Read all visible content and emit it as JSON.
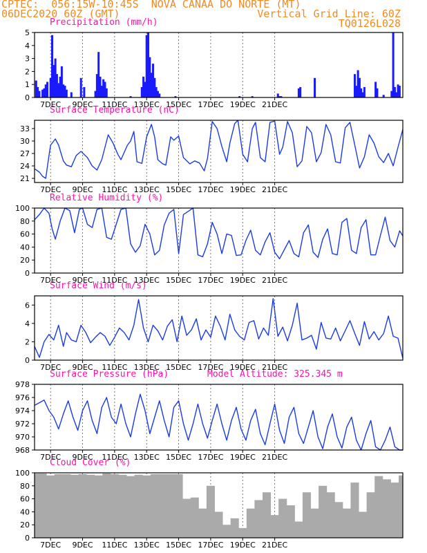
{
  "header": {
    "line1": "CPTEC:  056:15W-10:45S  NOVA CANAA DO NORTE (MT)",
    "line2_left": "06DEC2020 60Z (GMT)",
    "line2_right": "Vertical Grid Line: 60Z",
    "line3_right": "TQ0126L028"
  },
  "x_ticks": [
    "7DEC",
    "9DEC",
    "11DEC",
    "13DEC",
    "15DEC",
    "17DEC",
    "19DEC",
    "21DEC"
  ],
  "chart_data": [
    {
      "type": "bar",
      "title": "Precipitation (mm/h)",
      "ylim": [
        0,
        5
      ],
      "yticks": [
        0,
        1,
        2,
        3,
        4,
        5
      ],
      "color": "#1a1aff",
      "x_unit": "days since 06DEC2020 00Z",
      "x": [
        0.1,
        0.2,
        0.3,
        0.5,
        0.6,
        0.7,
        0.8,
        1.0,
        1.1,
        1.2,
        1.3,
        1.4,
        1.5,
        1.6,
        1.7,
        1.8,
        1.9,
        2.0,
        2.3,
        2.9,
        3.1,
        3.8,
        3.9,
        4.0,
        4.1,
        4.2,
        4.3,
        4.4,
        4.5,
        6.0,
        6.7,
        6.8,
        6.9,
        7.0,
        7.1,
        7.2,
        7.3,
        7.4,
        7.5,
        7.6,
        7.7,
        7.8,
        8.8,
        12.8,
        13.6,
        15.2,
        15.3,
        15.4,
        16.5,
        16.6,
        17.5,
        20.0,
        20.1,
        20.2,
        20.3,
        20.4,
        20.5,
        20.6,
        21.3,
        21.4,
        21.8,
        22.3,
        22.4,
        22.5,
        22.6,
        22.7,
        22.8
      ],
      "values": [
        1.3,
        0.8,
        0.5,
        0.6,
        0.7,
        1.0,
        1.2,
        1.5,
        4.8,
        2.5,
        3.0,
        1.8,
        1.1,
        1.6,
        2.4,
        1.0,
        0.9,
        0.6,
        0.4,
        1.5,
        0.8,
        0.5,
        1.8,
        3.5,
        1.6,
        0.9,
        1.4,
        1.2,
        0.7,
        0.1,
        0.8,
        1.6,
        1.2,
        4.8,
        5.0,
        3.1,
        1.9,
        2.6,
        1.5,
        0.8,
        0.5,
        0.3,
        0.1,
        0.1,
        0.1,
        0.3,
        0.1,
        0.1,
        0.7,
        0.8,
        1.5,
        1.8,
        0.9,
        2.1,
        1.5,
        0.7,
        0.4,
        0.8,
        1.2,
        0.7,
        0.2,
        0.5,
        5.0,
        0.8,
        0.4,
        1.0,
        0.9
      ]
    },
    {
      "type": "line",
      "title": "Surface Temperature (nC)",
      "ylim": [
        20,
        35
      ],
      "yticks": [
        21,
        24,
        27,
        30,
        33
      ],
      "color": "#1a3ae6",
      "x": [
        0,
        0.3,
        0.5,
        0.7,
        0.9,
        1.0,
        1.3,
        1.5,
        1.8,
        2.0,
        2.3,
        2.6,
        2.9,
        3.3,
        3.6,
        3.9,
        4.2,
        4.6,
        4.9,
        5.2,
        5.4,
        5.8,
        6.0,
        6.2,
        6.4,
        6.7,
        7.0,
        7.3,
        7.5,
        7.7,
        8.0,
        8.2,
        8.5,
        8.7,
        9.0,
        9.3,
        9.7,
        10.0,
        10.3,
        10.6,
        10.8,
        11.1,
        11.4,
        11.7,
        12.0,
        12.2,
        12.5,
        12.7,
        13.0,
        13.3,
        13.6,
        13.8,
        14.1,
        14.4,
        14.7,
        15.0,
        15.3,
        15.5,
        15.8,
        16.1,
        16.4,
        16.7,
        17.0,
        17.3,
        17.6,
        17.9,
        18.2,
        18.5,
        18.8,
        19.1,
        19.4,
        19.7,
        20.0,
        20.3,
        20.6,
        20.9,
        21.2,
        21.5,
        21.8,
        22.1,
        22.4,
        22.7,
        23.0
      ],
      "values": [
        23.3,
        22.5,
        21.5,
        21.0,
        26.5,
        29.0,
        30.5,
        29.0,
        25.2,
        24.2,
        23.8,
        26.5,
        27.5,
        26.0,
        24.0,
        23.0,
        25.5,
        31.5,
        29.5,
        26.8,
        25.5,
        29.0,
        30.0,
        32.3,
        25.0,
        24.6,
        31.0,
        34.0,
        31.0,
        25.5,
        24.5,
        24.2,
        31.0,
        30.2,
        31.2,
        26.0,
        24.5,
        25.2,
        24.7,
        22.8,
        25.8,
        34.7,
        33.0,
        28.7,
        25.0,
        29.5,
        34.2,
        35.0,
        26.8,
        25.0,
        33.0,
        34.5,
        26.0,
        25.0,
        34.5,
        34.8,
        26.8,
        28.5,
        34.7,
        32.0,
        23.8,
        25.2,
        33.5,
        32.0,
        25.0,
        27.2,
        34.0,
        31.5,
        25.0,
        24.7,
        33.2,
        34.5,
        29.0,
        23.5,
        26.2,
        31.5,
        29.5,
        26.2,
        24.8,
        27.0,
        24.0,
        28.5,
        32.8
      ]
    },
    {
      "type": "line",
      "title": "Relative Humidity (%)",
      "ylim": [
        0,
        100
      ],
      "yticks": [
        0,
        20,
        40,
        60,
        80,
        100
      ],
      "color": "#1a3ae6",
      "x": [
        0,
        0.3,
        0.6,
        0.9,
        1.1,
        1.3,
        1.6,
        1.9,
        2.2,
        2.5,
        2.8,
        3.0,
        3.3,
        3.6,
        3.9,
        4.2,
        4.5,
        4.8,
        5.1,
        5.4,
        5.7,
        6.0,
        6.3,
        6.6,
        6.9,
        7.2,
        7.5,
        7.8,
        8.1,
        8.4,
        8.7,
        9.0,
        9.3,
        9.6,
        9.9,
        10.2,
        10.5,
        10.8,
        11.1,
        11.4,
        11.7,
        12.0,
        12.3,
        12.6,
        12.9,
        13.2,
        13.5,
        13.8,
        14.1,
        14.4,
        14.7,
        15.0,
        15.3,
        15.6,
        15.9,
        16.2,
        16.5,
        16.8,
        17.1,
        17.4,
        17.7,
        18.0,
        18.3,
        18.6,
        18.9,
        19.2,
        19.5,
        19.8,
        20.1,
        20.4,
        20.7,
        21.0,
        21.3,
        21.6,
        21.9,
        22.2,
        22.5,
        22.8,
        23.0
      ],
      "values": [
        82,
        90,
        100,
        92,
        68,
        52,
        80,
        100,
        96,
        62,
        98,
        100,
        75,
        70,
        98,
        100,
        55,
        52,
        75,
        98,
        100,
        45,
        32,
        42,
        75,
        60,
        28,
        35,
        74,
        92,
        98,
        30,
        90,
        95,
        100,
        28,
        25,
        45,
        78,
        60,
        30,
        60,
        58,
        27,
        28,
        50,
        66,
        35,
        28,
        48,
        62,
        32,
        22,
        36,
        50,
        30,
        25,
        62,
        74,
        32,
        24,
        52,
        68,
        30,
        28,
        78,
        84,
        35,
        30,
        70,
        82,
        28,
        28,
        58,
        86,
        50,
        40,
        65,
        57
      ]
    },
    {
      "type": "line",
      "title": "Surface Wind (m/s)",
      "ylim": [
        0,
        7
      ],
      "yticks": [
        0,
        2,
        4,
        6
      ],
      "color": "#1a3ae6",
      "x": [
        0,
        0.3,
        0.6,
        0.9,
        1.2,
        1.5,
        1.8,
        2.0,
        2.3,
        2.6,
        2.9,
        3.2,
        3.5,
        3.8,
        4.1,
        4.4,
        4.7,
        5.0,
        5.3,
        5.6,
        5.9,
        6.2,
        6.5,
        6.8,
        7.1,
        7.4,
        7.7,
        8.0,
        8.3,
        8.6,
        8.9,
        9.2,
        9.5,
        9.8,
        10.1,
        10.4,
        10.7,
        11.0,
        11.3,
        11.6,
        11.9,
        12.2,
        12.5,
        12.8,
        13.1,
        13.4,
        13.7,
        14.0,
        14.3,
        14.6,
        14.9,
        15.2,
        15.5,
        15.8,
        16.1,
        16.4,
        16.7,
        17.0,
        17.3,
        17.6,
        17.9,
        18.2,
        18.5,
        18.8,
        19.1,
        19.4,
        19.7,
        20.0,
        20.3,
        20.6,
        20.9,
        21.2,
        21.5,
        21.8,
        22.1,
        22.4,
        22.7,
        23.0
      ],
      "values": [
        1.5,
        0.3,
        2.0,
        2.8,
        2.2,
        3.8,
        1.5,
        3.0,
        2.2,
        2.0,
        3.8,
        3.0,
        1.9,
        2.5,
        3.0,
        2.6,
        1.6,
        2.5,
        3.5,
        3.0,
        2.2,
        3.8,
        6.6,
        3.5,
        2.0,
        3.8,
        3.2,
        2.2,
        3.7,
        4.4,
        2.0,
        4.8,
        2.7,
        3.3,
        4.5,
        2.2,
        3.3,
        2.5,
        4.8,
        3.7,
        2.2,
        5.0,
        3.3,
        2.6,
        2.2,
        4.1,
        4.3,
        2.3,
        3.5,
        2.7,
        6.7,
        2.6,
        3.6,
        2.1,
        3.8,
        6.2,
        2.2,
        2.4,
        2.7,
        1.2,
        4.1,
        2.4,
        2.3,
        3.5,
        2.1,
        3.2,
        4.3,
        2.9,
        1.6,
        4.2,
        2.3,
        3.1,
        2.2,
        2.9,
        4.8,
        2.6,
        2.4,
        0.2
      ]
    },
    {
      "type": "line",
      "title": "Surface Pressure (hPa)",
      "annotation": "Model Altitude: 325.345 m",
      "ylim": [
        968,
        978
      ],
      "yticks": [
        968,
        970,
        972,
        974,
        976,
        978
      ],
      "color": "#1a3ae6",
      "x": [
        0,
        0.3,
        0.6,
        0.9,
        1.2,
        1.5,
        1.8,
        2.1,
        2.4,
        2.7,
        3.0,
        3.3,
        3.6,
        3.9,
        4.2,
        4.5,
        4.8,
        5.1,
        5.4,
        5.7,
        6.0,
        6.3,
        6.6,
        6.9,
        7.2,
        7.5,
        7.8,
        8.1,
        8.4,
        8.7,
        9.0,
        9.3,
        9.6,
        9.9,
        10.2,
        10.5,
        10.8,
        11.1,
        11.4,
        11.7,
        12.0,
        12.3,
        12.6,
        12.9,
        13.2,
        13.5,
        13.8,
        14.1,
        14.4,
        14.7,
        15.0,
        15.3,
        15.6,
        15.9,
        16.2,
        16.5,
        16.8,
        17.1,
        17.4,
        17.7,
        18.0,
        18.3,
        18.6,
        18.9,
        19.2,
        19.5,
        19.8,
        20.1,
        20.4,
        20.7,
        21.0,
        21.3,
        21.6,
        21.9,
        22.2,
        22.5,
        22.8,
        23.0
      ],
      "values": [
        974.8,
        975.2,
        975.6,
        974.0,
        973.0,
        971.2,
        973.5,
        975.5,
        973.0,
        971.0,
        974.0,
        975.5,
        972.5,
        970.5,
        974.5,
        976.0,
        973.0,
        972.0,
        975.0,
        972.0,
        970.0,
        973.5,
        976.5,
        974.0,
        970.5,
        973.0,
        975.5,
        972.5,
        970.0,
        974.5,
        975.5,
        972.0,
        969.5,
        972.0,
        975.0,
        972.0,
        969.8,
        972.5,
        975.0,
        972.0,
        969.5,
        972.5,
        974.5,
        971.2,
        969.5,
        972.5,
        974.2,
        970.5,
        968.8,
        972.0,
        975.0,
        971.0,
        969.0,
        973.0,
        974.5,
        970.5,
        969.0,
        971.5,
        974.0,
        970.0,
        968.2,
        971.5,
        973.5,
        970.0,
        968.3,
        971.5,
        973.0,
        969.5,
        968.0,
        970.5,
        972.5,
        968.5,
        968.0,
        969.5,
        971.5,
        968.5,
        968.0,
        968.0
      ]
    },
    {
      "type": "bar",
      "title": "Cloud Cover (%)",
      "ylim": [
        0,
        100
      ],
      "yticks": [
        0,
        20,
        40,
        60,
        80,
        100
      ],
      "color": "#aaaaaa",
      "x": [
        0,
        0.5,
        1,
        1.5,
        2,
        2.5,
        3,
        3.5,
        4,
        4.5,
        5,
        5.5,
        6,
        6.5,
        7,
        7.5,
        8,
        8.5,
        9,
        9.5,
        10,
        10.5,
        11,
        11.5,
        12,
        12.5,
        13,
        13.5,
        14,
        14.5,
        15,
        15.5,
        16,
        16.5,
        17,
        17.5,
        18,
        18.5,
        19,
        19.5,
        20,
        20.5,
        21,
        21.5,
        22,
        22.5,
        23
      ],
      "values": [
        99,
        99,
        96,
        98,
        98,
        97,
        98,
        97,
        96,
        99,
        98,
        97,
        95,
        97,
        96,
        98,
        98,
        98,
        98,
        60,
        62,
        45,
        80,
        40,
        20,
        30,
        15,
        45,
        58,
        70,
        35,
        60,
        50,
        25,
        70,
        45,
        80,
        70,
        55,
        45,
        85,
        40,
        70,
        95,
        90,
        85,
        96
      ]
    }
  ]
}
